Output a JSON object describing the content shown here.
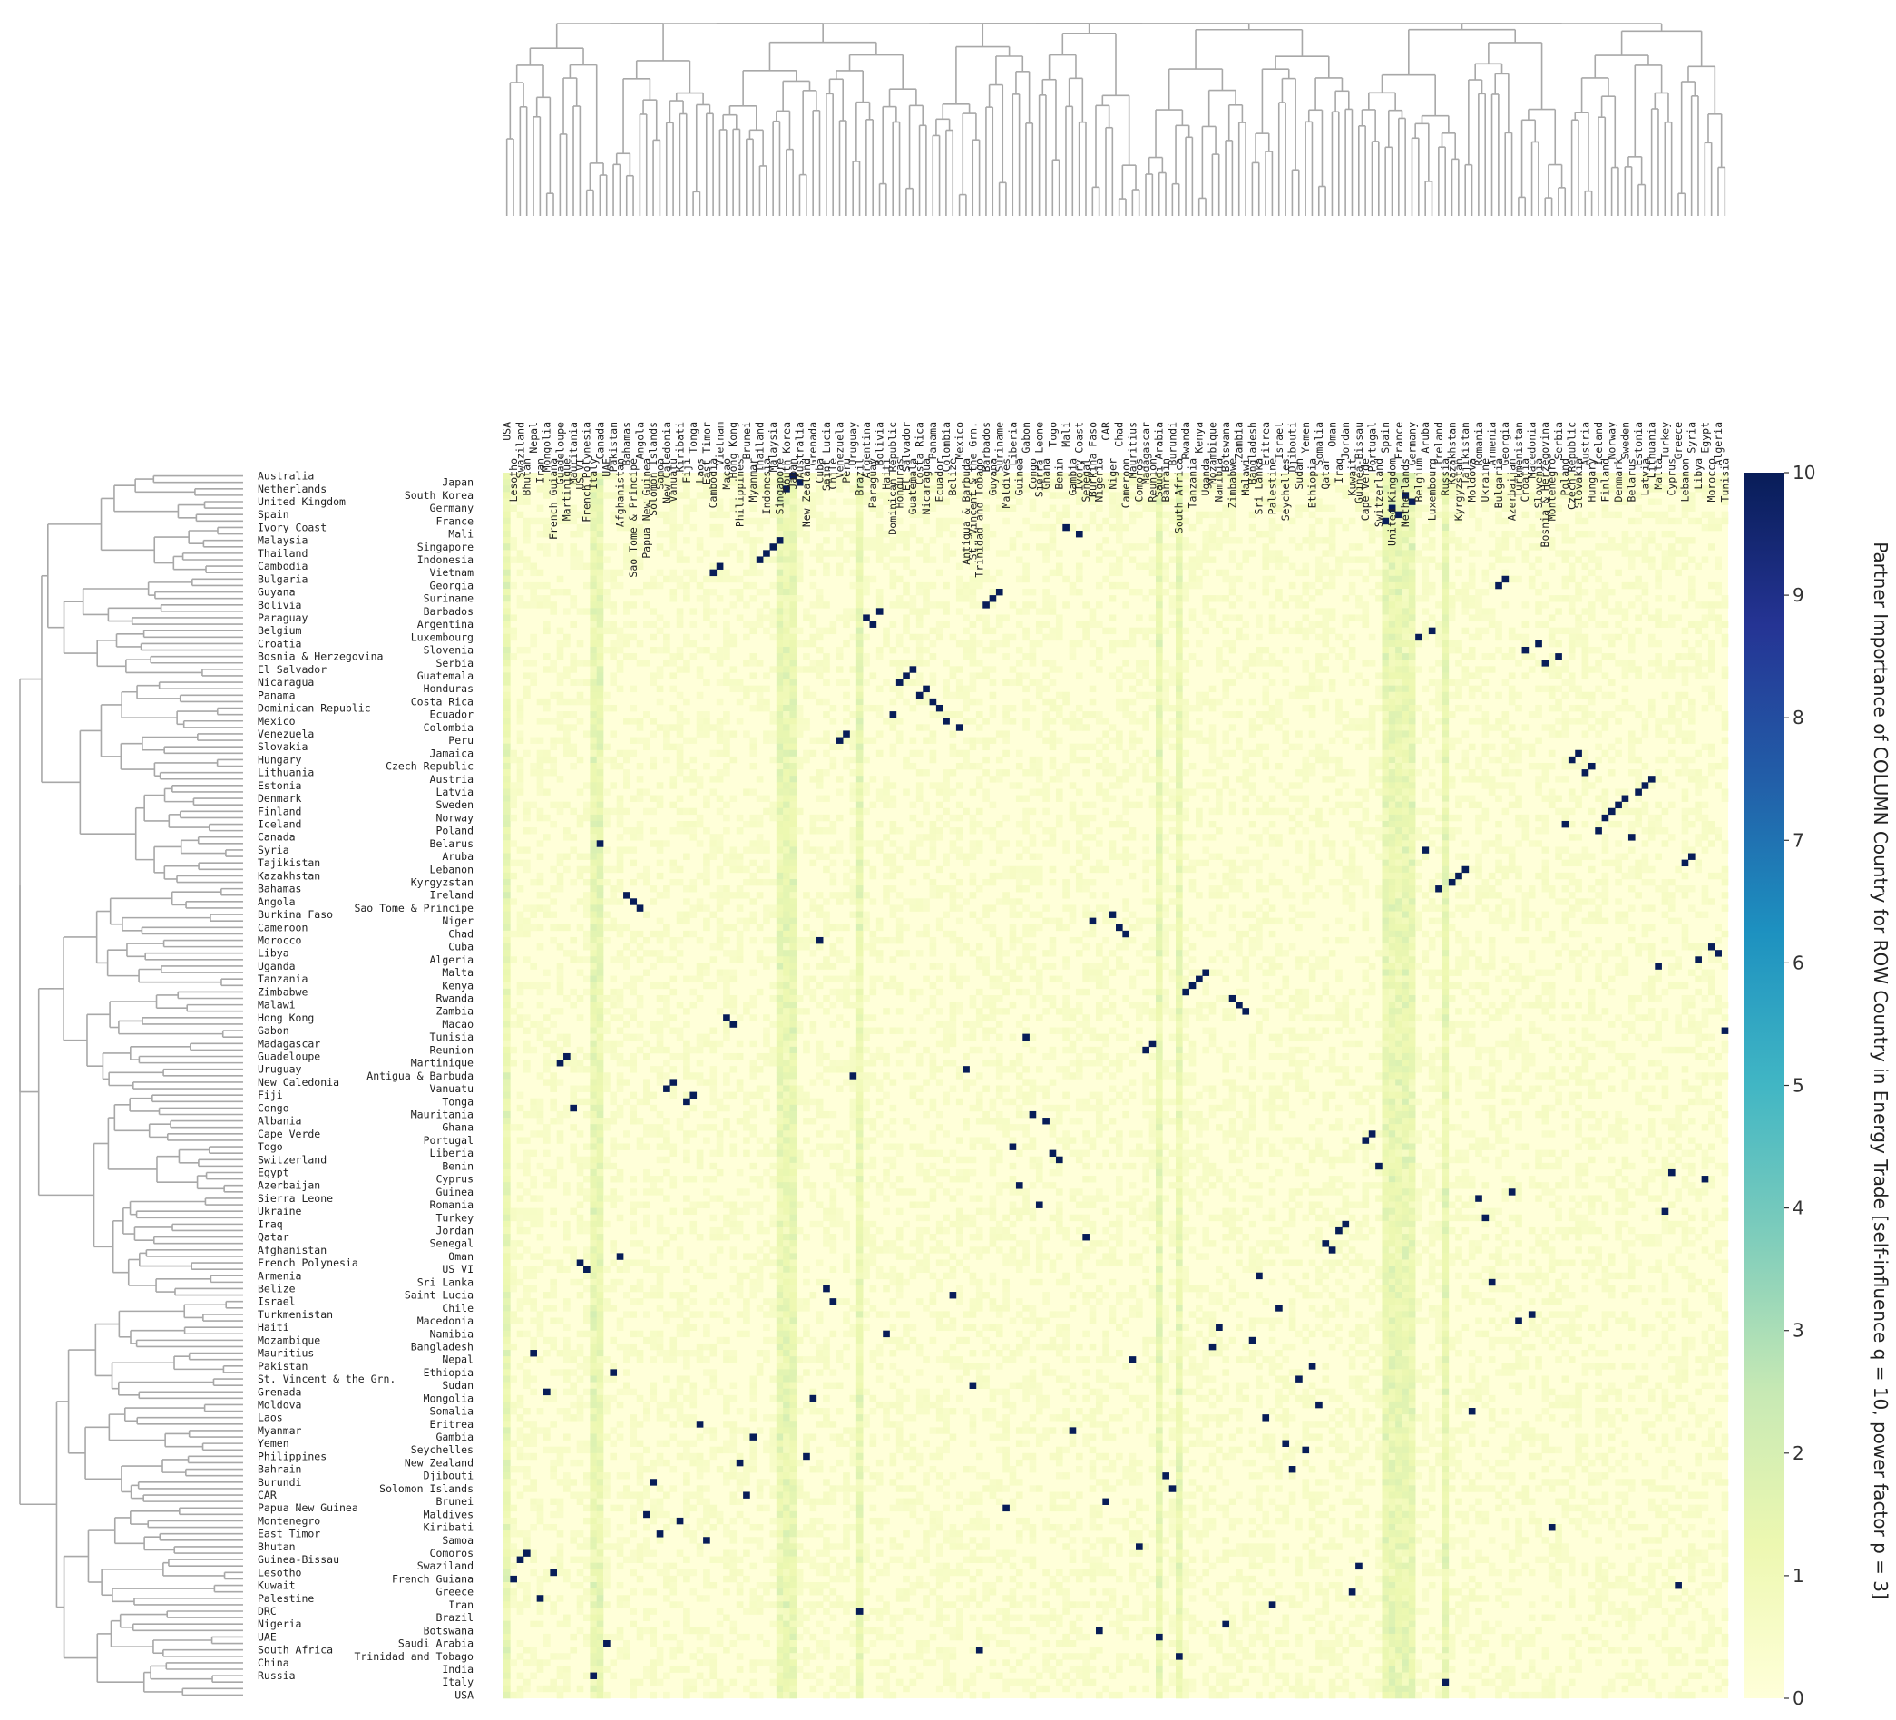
{
  "chart_data": {
    "type": "heatmap",
    "colormap": "YlGnBu",
    "vmin": 0,
    "vmax": 10,
    "colorbar_ticks": [
      0,
      1,
      2,
      3,
      4,
      5,
      6,
      7,
      8,
      9,
      10
    ],
    "colorbar_label": "Partner Importance of COLUMN Country for ROW Country in Energy Trade [self-influence q = 10, power factor p = 3]",
    "label_pairs": [
      [
        "Australia",
        "Japan"
      ],
      [
        "Netherlands",
        "South Korea"
      ],
      [
        "United Kingdom",
        "Germany"
      ],
      [
        "Spain",
        "France"
      ],
      [
        "Ivory Coast",
        "Mali"
      ],
      [
        "Malaysia",
        "Singapore"
      ],
      [
        "Thailand",
        "Indonesia"
      ],
      [
        "Cambodia",
        "Vietnam"
      ],
      [
        "Bulgaria",
        "Georgia"
      ],
      [
        "Guyana",
        "Suriname"
      ],
      [
        "Bolivia",
        "Barbados"
      ],
      [
        "Paraguay",
        "Argentina"
      ],
      [
        "Belgium",
        "Luxembourg"
      ],
      [
        "Croatia",
        "Slovenia"
      ],
      [
        "Bosnia & Herzegovina",
        "Serbia"
      ],
      [
        "El Salvador",
        "Guatemala"
      ],
      [
        "Nicaragua",
        "Honduras"
      ],
      [
        "Panama",
        "Costa Rica"
      ],
      [
        "Dominican Republic",
        "Ecuador"
      ],
      [
        "Mexico",
        "Colombia"
      ],
      [
        "Venezuela",
        "Peru"
      ],
      [
        "Slovakia",
        "Jamaica"
      ],
      [
        "Hungary",
        "Czech Republic"
      ],
      [
        "Lithuania",
        "Austria"
      ],
      [
        "Estonia",
        "Latvia"
      ],
      [
        "Denmark",
        "Sweden"
      ],
      [
        "Finland",
        "Norway"
      ],
      [
        "Iceland",
        "Poland"
      ],
      [
        "Canada",
        "Belarus"
      ],
      [
        "Syria",
        "Aruba"
      ],
      [
        "Tajikistan",
        "Lebanon"
      ],
      [
        "Kazakhstan",
        "Kyrgyzstan"
      ],
      [
        "Bahamas",
        "Ireland"
      ],
      [
        "Angola",
        "Sao Tome & Principe"
      ],
      [
        "Burkina Faso",
        "Niger"
      ],
      [
        "Cameroon",
        "Chad"
      ],
      [
        "Morocco",
        "Cuba"
      ],
      [
        "Libya",
        "Algeria"
      ],
      [
        "Uganda",
        "Malta"
      ],
      [
        "Tanzania",
        "Kenya"
      ],
      [
        "Zimbabwe",
        "Rwanda"
      ],
      [
        "Malawi",
        "Zambia"
      ],
      [
        "Hong Kong",
        "Macao"
      ],
      [
        "Gabon",
        "Tunisia"
      ],
      [
        "Madagascar",
        "Reunion"
      ],
      [
        "Guadeloupe",
        "Martinique"
      ],
      [
        "Uruguay",
        "Antigua & Barbuda"
      ],
      [
        "New Caledonia",
        "Vanuatu"
      ],
      [
        "Fiji",
        "Tonga"
      ],
      [
        "Congo",
        "Mauritania"
      ],
      [
        "Albania",
        "Ghana"
      ],
      [
        "Cape Verde",
        "Portugal"
      ],
      [
        "Togo",
        "Liberia"
      ],
      [
        "Switzerland",
        "Benin"
      ],
      [
        "Egypt",
        "Cyprus"
      ],
      [
        "Azerbaijan",
        "Guinea"
      ],
      [
        "Sierra Leone",
        "Romania"
      ],
      [
        "Ukraine",
        "Turkey"
      ],
      [
        "Iraq",
        "Jordan"
      ],
      [
        "Qatar",
        "Senegal"
      ],
      [
        "Afghanistan",
        "Oman"
      ],
      [
        "French Polynesia",
        "US VI"
      ],
      [
        "Armenia",
        "Sri Lanka"
      ],
      [
        "Belize",
        "Saint Lucia"
      ],
      [
        "Israel",
        "Chile"
      ],
      [
        "Turkmenistan",
        "Macedonia"
      ],
      [
        "Haiti",
        "Namibia"
      ],
      [
        "Mozambique",
        "Bangladesh"
      ],
      [
        "Mauritius",
        "Nepal"
      ],
      [
        "Pakistan",
        "Ethiopia"
      ],
      [
        "St. Vincent & the Grn.",
        "Sudan"
      ],
      [
        "Grenada",
        "Mongolia"
      ],
      [
        "Moldova",
        "Somalia"
      ],
      [
        "Laos",
        "Eritrea"
      ],
      [
        "Myanmar",
        "Gambia"
      ],
      [
        "Yemen",
        "Seychelles"
      ],
      [
        "Philippines",
        "New Zealand"
      ],
      [
        "Bahrain",
        "Djibouti"
      ],
      [
        "Burundi",
        "Solomon Islands"
      ],
      [
        "CAR",
        "Brunei"
      ],
      [
        "Papua New Guinea",
        "Maldives"
      ],
      [
        "Montenegro",
        "Kiribati"
      ],
      [
        "East Timor",
        "Samoa"
      ],
      [
        "Bhutan",
        "Comoros"
      ],
      [
        "Guinea-Bissau",
        "Swaziland"
      ],
      [
        "Lesotho",
        "French Guiana"
      ],
      [
        "Kuwait",
        "Greece"
      ],
      [
        "Palestine",
        "Iran"
      ],
      [
        "DRC",
        "Brazil"
      ],
      [
        "Nigeria",
        "Botswana"
      ],
      [
        "UAE",
        "Saudi Arabia"
      ],
      [
        "South Africa",
        "Trinidad and Tobago"
      ],
      [
        "China",
        "India"
      ],
      [
        "Russia",
        "Italy"
      ],
      [
        "",
        "USA"
      ]
    ],
    "column_labels": [
      "USA",
      "Lesotho",
      "Swaziland",
      "Bhutan",
      "Nepal",
      "Iran",
      "Mongolia",
      "French Guiana",
      "Guadeloupe",
      "Martinique",
      "Mauritania",
      "US VI",
      "French Polynesia",
      "Italy",
      "Canada",
      "UAE",
      "Pakistan",
      "Afghanistan",
      "Bahamas",
      "Sao Tome & Principe",
      "Angola",
      "Papua New Guinea",
      "Solomon Islands",
      "Samoa",
      "New Caledonia",
      "Vanuatu",
      "Kiribati",
      "Fiji",
      "Tonga",
      "Laos",
      "East Timor",
      "Cambodia",
      "Vietnam",
      "Macao",
      "Hong Kong",
      "Philippines",
      "Brunei",
      "Myanmar",
      "Thailand",
      "Indonesia",
      "Malaysia",
      "Singapore",
      "South Korea",
      "Japan",
      "Australia",
      "New Zealand",
      "Grenada",
      "Cuba",
      "Saint Lucia",
      "Chile",
      "Venezuela",
      "Peru",
      "Uruguay",
      "Brazil",
      "Argentina",
      "Paraguay",
      "Bolivia",
      "Haiti",
      "Dominican Republic",
      "Honduras",
      "El Salvador",
      "Guatemala",
      "Costa Rica",
      "Nicaragua",
      "Panama",
      "Ecuador",
      "Colombia",
      "Belize",
      "Mexico",
      "Antigua & Barbuda",
      "St. Vincent & the Grn.",
      "Trinidad and Tobago",
      "Barbados",
      "Guyana",
      "Suriname",
      "Maldives",
      "Liberia",
      "Guinea",
      "Gabon",
      "Congo",
      "Sierra Leone",
      "Ghana",
      "Togo",
      "Benin",
      "Mali",
      "Gambia",
      "Ivory Coast",
      "Senegal",
      "Burkina Faso",
      "Nigeria",
      "CAR",
      "Niger",
      "Chad",
      "Cameroon",
      "Mauritius",
      "Comoros",
      "Madagascar",
      "Reunion",
      "Saudi Arabia",
      "Bahrain",
      "Burundi",
      "South Africa",
      "Rwanda",
      "Tanzania",
      "Kenya",
      "Uganda",
      "Mozambique",
      "Namibia",
      "Botswana",
      "Zimbabwe",
      "Zambia",
      "Malawi",
      "Bangladesh",
      "Sri Lanka",
      "Eritrea",
      "Palestine",
      "Israel",
      "Seychelles",
      "Djibouti",
      "Sudan",
      "Yemen",
      "Ethiopia",
      "Somalia",
      "Qatar",
      "Oman",
      "Iraq",
      "Jordan",
      "Kuwait",
      "Guinea-Bissau",
      "Cape Verde",
      "Portugal",
      "Switzerland",
      "Spain",
      "United Kingdom",
      "France",
      "Netherlands",
      "Germany",
      "Belgium",
      "Aruba",
      "Luxembourg",
      "Ireland",
      "Russia",
      "Kazakhstan",
      "Kyrgyzstan",
      "Tajikistan",
      "Moldova",
      "Romania",
      "Ukraine",
      "Armenia",
      "Bulgaria",
      "Georgia",
      "Azerbaijan",
      "Turkmenistan",
      "Croatia",
      "Macedonia",
      "Slovenia",
      "Bosnia & Herzegovina",
      "Montenegro",
      "Serbia",
      "Poland",
      "Czech Republic",
      "Slovakia",
      "Austria",
      "Hungary",
      "Iceland",
      "Finland",
      "Norway",
      "Denmark",
      "Sweden",
      "Belarus",
      "Estonia",
      "Latvia",
      "Lithuania",
      "Malta",
      "Turkey",
      "Cyprus",
      "Greece",
      "Lebanon",
      "Syria",
      "Libya",
      "Egypt",
      "Morocco",
      "Algeria",
      "Tunisia"
    ]
  }
}
